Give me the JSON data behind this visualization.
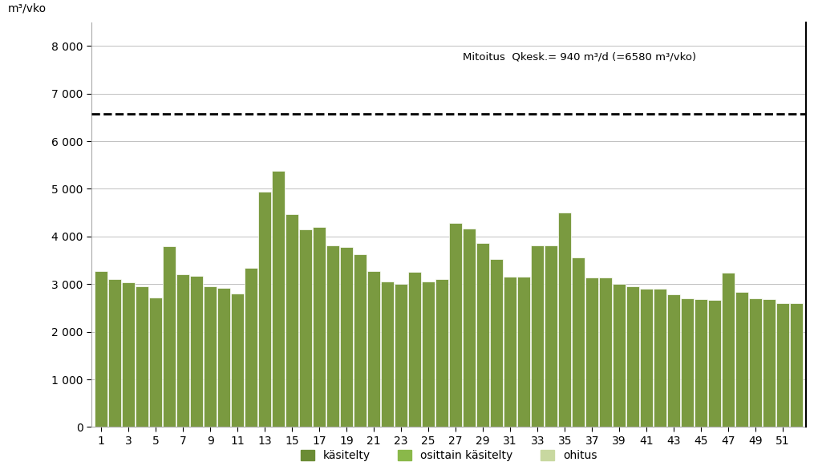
{
  "bar_data": [
    3280,
    3100,
    3030,
    2950,
    2720,
    3800,
    3210,
    3180,
    2960,
    2920,
    2810,
    3340,
    4940,
    5380,
    4470,
    4150,
    4200,
    3820,
    3780,
    3620,
    3270,
    3050,
    3010,
    3250,
    3060,
    3100,
    4290,
    4160,
    3870,
    3530,
    3160,
    3150,
    3820,
    3820,
    4510,
    3560,
    3140,
    3140,
    3010,
    2960,
    2910,
    2910,
    2780,
    2700,
    2680,
    2660,
    3240,
    2830,
    2700,
    2680,
    2600,
    2600
  ],
  "bar_color": "#7a9a40",
  "dashed_line_y": 6580,
  "annotation_text": "Mitoitus  Qkesk.= 940 m³/d (=6580 m³/vko)",
  "ylabel": "m³/vko",
  "ylim": [
    0,
    8500
  ],
  "yticks": [
    0,
    1000,
    2000,
    3000,
    4000,
    5000,
    6000,
    7000,
    8000
  ],
  "ytick_labels": [
    "0",
    "1 000",
    "2 000",
    "3 000",
    "4 000",
    "5 000",
    "6 000",
    "7 000",
    "8 000"
  ],
  "legend_labels": [
    "käsitelty",
    "osittain käsitelty",
    "ohitus"
  ],
  "legend_colors": [
    "#6b8c35",
    "#8ab84a",
    "#c8d8a0"
  ],
  "background_color": "#ffffff",
  "grid_color": "#c0c0c0",
  "right_line_color": "#000000"
}
